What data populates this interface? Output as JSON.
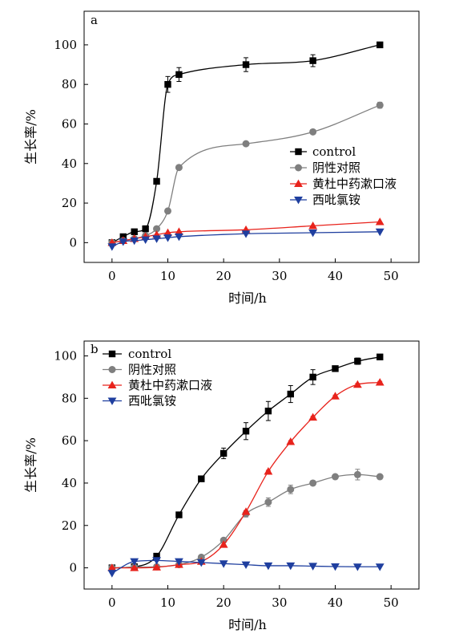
{
  "chart_data": [
    {
      "type": "line",
      "panel_label": "a",
      "xlabel": "时间/h",
      "ylabel": "生长率/%",
      "xlim": [
        -5,
        55
      ],
      "ylim": [
        -10,
        117
      ],
      "xticks": [
        "0",
        "10",
        "20",
        "30",
        "40",
        "50"
      ],
      "yticks": [
        "0",
        "20",
        "40",
        "60",
        "80",
        "100"
      ],
      "grid": false,
      "legend_position": "right-middle",
      "series": [
        {
          "name": "control",
          "color": "#000000",
          "marker": "square",
          "x": [
            0,
            2,
            4,
            6,
            8,
            10,
            12,
            24,
            36,
            48
          ],
          "y": [
            0,
            3,
            5.5,
            7,
            31,
            80,
            85,
            90,
            92,
            100
          ],
          "err": [
            0.5,
            0.5,
            0.5,
            1.5,
            1,
            4,
            3.5,
            3.5,
            3,
            0.5
          ]
        },
        {
          "name": "阴性对照",
          "color": "#7f7f7f",
          "marker": "circle",
          "x": [
            0,
            2,
            4,
            6,
            8,
            10,
            12,
            24,
            36,
            48
          ],
          "y": [
            0,
            1,
            2,
            3.5,
            7,
            16,
            38,
            50,
            56,
            69.5
          ],
          "err": [
            0.5,
            0.5,
            0.5,
            0.5,
            0.5,
            1,
            1,
            1,
            1,
            1.5
          ]
        },
        {
          "name": "黄杜中药漱口液",
          "color": "#e8231c",
          "marker": "triangle-up",
          "x": [
            0,
            2,
            4,
            6,
            8,
            10,
            12,
            24,
            36,
            48
          ],
          "y": [
            0,
            1,
            2,
            3,
            4,
            5,
            5.5,
            6.5,
            8.5,
            10.5
          ],
          "err": [
            0.3,
            0.3,
            0.3,
            0.3,
            0.3,
            0.3,
            0.3,
            0.3,
            0.3,
            0.3
          ]
        },
        {
          "name": "西吡氯铵",
          "color": "#1f3f9f",
          "marker": "triangle-down",
          "x": [
            0,
            2,
            4,
            6,
            8,
            10,
            12,
            24,
            36,
            48
          ],
          "y": [
            -2,
            0.5,
            1,
            1.5,
            2,
            2.5,
            3,
            4.5,
            5,
            5.5
          ],
          "err": [
            0.3,
            0.3,
            0.3,
            0.3,
            0.3,
            0.3,
            0.3,
            0.3,
            0.3,
            0.3
          ]
        }
      ]
    },
    {
      "type": "line",
      "panel_label": "b",
      "xlabel": "时间/h",
      "ylabel": "生长率/%",
      "xlim": [
        -5,
        55
      ],
      "ylim": [
        -10,
        107
      ],
      "xticks": [
        "0",
        "10",
        "20",
        "30",
        "40",
        "50"
      ],
      "yticks": [
        "0",
        "20",
        "40",
        "60",
        "80",
        "100"
      ],
      "grid": false,
      "legend_position": "top-left",
      "series": [
        {
          "name": "control",
          "color": "#000000",
          "marker": "square",
          "x": [
            0,
            4,
            8,
            12,
            16,
            20,
            24,
            28,
            32,
            36,
            40,
            44,
            48
          ],
          "y": [
            0,
            0.5,
            5.5,
            25,
            42,
            54,
            64.5,
            74,
            82,
            90,
            94,
            97.5,
            99.5
          ],
          "err": [
            0.3,
            0.3,
            0.5,
            0.5,
            0.8,
            2.5,
            4,
            4.5,
            4,
            3.5,
            1,
            1.5,
            0.5
          ]
        },
        {
          "name": "阴性对照",
          "color": "#7f7f7f",
          "marker": "circle",
          "x": [
            0,
            4,
            8,
            12,
            16,
            20,
            24,
            28,
            32,
            36,
            40,
            44,
            48
          ],
          "y": [
            0,
            0.3,
            0.5,
            1.5,
            5,
            13,
            25.5,
            31,
            37,
            40,
            43,
            44,
            43
          ],
          "err": [
            0.3,
            0.3,
            0.3,
            0.3,
            0.3,
            0.5,
            1.5,
            2,
            2,
            1,
            0.5,
            2.5,
            1
          ]
        },
        {
          "name": "黄杜中药漱口液",
          "color": "#e8231c",
          "marker": "triangle-up",
          "x": [
            0,
            4,
            8,
            12,
            16,
            20,
            24,
            28,
            32,
            36,
            40,
            44,
            48
          ],
          "y": [
            0,
            0,
            0.3,
            1.5,
            3,
            11,
            26.5,
            45.5,
            59.5,
            71,
            81,
            86.5,
            87.5
          ],
          "err": [
            0.3,
            0.3,
            0.3,
            0.3,
            0.3,
            0.3,
            0.5,
            0.5,
            0.5,
            0.5,
            0.5,
            0.5,
            0.5
          ]
        },
        {
          "name": "西吡氯铵",
          "color": "#1f3f9f",
          "marker": "triangle-down",
          "x": [
            0,
            4,
            8,
            12,
            16,
            20,
            24,
            28,
            32,
            36,
            40,
            44,
            48
          ],
          "y": [
            -2.5,
            3,
            3.5,
            3,
            2.5,
            2,
            1.5,
            1,
            1,
            0.8,
            0.6,
            0.5,
            0.5
          ],
          "err": [
            0.3,
            0.3,
            0.3,
            0.3,
            0.3,
            0.3,
            0.3,
            0.3,
            0.3,
            0.3,
            0.3,
            0.3,
            0.3
          ]
        }
      ]
    }
  ]
}
